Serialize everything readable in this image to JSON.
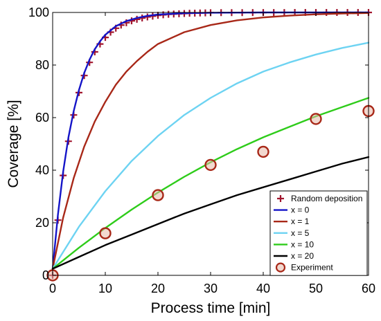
{
  "chart_data": {
    "type": "line",
    "xlabel": "Process time [min]",
    "ylabel": "Coverage [%]",
    "xlim": [
      0,
      60
    ],
    "ylim": [
      0,
      100
    ],
    "xticks": [
      0,
      10,
      20,
      30,
      40,
      50,
      60
    ],
    "yticks": [
      0,
      20,
      40,
      60,
      80,
      100
    ],
    "grid": false,
    "legend_position": "bottom-right",
    "series": [
      {
        "name": "Random deposition",
        "kind": "marker-plus",
        "color": "#a0142d",
        "x": [
          0,
          1,
          2,
          3,
          4,
          5,
          6,
          7,
          8,
          9,
          10,
          11,
          12,
          13,
          14,
          15,
          16,
          17,
          18,
          19,
          20,
          21,
          22,
          23,
          24,
          25,
          26,
          27,
          28,
          29,
          30,
          32,
          34,
          36,
          38,
          40,
          42,
          44,
          46,
          48,
          50,
          52,
          54,
          56,
          58,
          60
        ],
        "y": [
          0,
          21,
          38,
          51,
          61,
          69.5,
          76,
          81,
          85,
          88,
          90.5,
          92.5,
          94,
          95.2,
          96.1,
          96.8,
          97.4,
          97.9,
          98.3,
          98.6,
          98.9,
          99.1,
          99.3,
          99.4,
          99.5,
          99.6,
          99.7,
          99.75,
          99.8,
          99.85,
          99.9,
          99.92,
          99.94,
          99.95,
          99.96,
          99.97,
          99.98,
          99.98,
          99.99,
          99.99,
          99.99,
          100,
          100,
          100,
          100,
          100
        ]
      },
      {
        "name": "x = 0",
        "kind": "line",
        "color": "#1414c8",
        "x": [
          0,
          1,
          2,
          3,
          4,
          5,
          6,
          7,
          8,
          9,
          10,
          12,
          14,
          16,
          18,
          20,
          25,
          30,
          40,
          50,
          60
        ],
        "y": [
          2.5,
          23,
          39.5,
          52.5,
          62.5,
          70.5,
          77,
          82,
          86,
          89,
          91.5,
          94.8,
          96.7,
          97.9,
          98.7,
          99.2,
          99.7,
          99.9,
          100,
          100,
          100
        ]
      },
      {
        "name": "x = 1",
        "kind": "line",
        "color": "#a82818",
        "x": [
          0,
          2,
          4,
          6,
          8,
          10,
          12,
          14,
          16,
          18,
          20,
          25,
          30,
          35,
          40,
          45,
          50,
          55,
          60
        ],
        "y": [
          2.5,
          22,
          37,
          49,
          58.5,
          66,
          72.5,
          77.5,
          81.5,
          85,
          88,
          92.5,
          95.2,
          97,
          98.1,
          98.8,
          99.3,
          99.6,
          99.8
        ]
      },
      {
        "name": "x = 5",
        "kind": "line",
        "color": "#6dd3f2",
        "x": [
          0,
          5,
          10,
          15,
          20,
          25,
          30,
          35,
          40,
          45,
          50,
          55,
          60
        ],
        "y": [
          2.5,
          18.5,
          32,
          43.5,
          53,
          61,
          67.5,
          73,
          77.5,
          81,
          84,
          86.5,
          88.5
        ]
      },
      {
        "name": "x = 10",
        "kind": "line",
        "color": "#2ecc1a",
        "x": [
          0,
          5,
          10,
          15,
          20,
          25,
          30,
          35,
          40,
          45,
          50,
          55,
          60
        ],
        "y": [
          2.5,
          10.5,
          18,
          25,
          31.5,
          37.5,
          43,
          48,
          52.5,
          56.5,
          60.5,
          64,
          67.5
        ]
      },
      {
        "name": "x = 20",
        "kind": "line",
        "color": "#000000",
        "x": [
          0,
          5,
          10,
          15,
          20,
          25,
          30,
          35,
          40,
          45,
          50,
          55,
          60
        ],
        "y": [
          2.5,
          7,
          11.5,
          15.5,
          19.5,
          23.5,
          27,
          30.5,
          33.5,
          36.5,
          39.5,
          42.5,
          45
        ]
      },
      {
        "name": "Experiment",
        "kind": "marker-circle",
        "color": "#a82818",
        "x": [
          0,
          10,
          20,
          30,
          40,
          50,
          60
        ],
        "y": [
          0,
          16,
          30.5,
          42,
          47,
          59.5,
          62.5
        ]
      }
    ]
  }
}
